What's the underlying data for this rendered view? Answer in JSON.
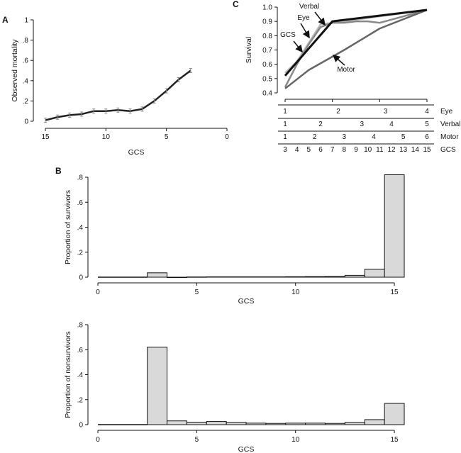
{
  "chart_data": [
    {
      "panel": "A",
      "type": "line",
      "xlabel": "GCS",
      "ylabel": "Observed mortality",
      "xlim": [
        15,
        0
      ],
      "ylim": [
        0,
        1
      ],
      "x_ticks": [
        15,
        10,
        5,
        0
      ],
      "y_ticks": [
        0,
        0.2,
        0.4,
        0.6,
        0.8,
        1
      ],
      "y_tick_labels": [
        "0",
        ".2",
        ".4",
        ".6",
        ".8",
        "1"
      ],
      "x": [
        15,
        14,
        13,
        12,
        11,
        10,
        9,
        8,
        7,
        6,
        5,
        4,
        3
      ],
      "values": [
        0.01,
        0.04,
        0.06,
        0.07,
        0.1,
        0.1,
        0.11,
        0.1,
        0.12,
        0.2,
        0.3,
        0.41,
        0.5
      ]
    },
    {
      "panel": "C",
      "type": "line",
      "ylabel": "Survival",
      "ylim": [
        0.4,
        1.0
      ],
      "y_ticks": [
        0.4,
        0.5,
        0.6,
        0.7,
        0.8,
        0.9,
        1.0
      ],
      "y_tick_labels": [
        "0.4",
        "0.5",
        "0.6",
        "0.7",
        "0.8",
        "0.9",
        "1.0"
      ],
      "series": [
        {
          "name": "GCS",
          "color": "#111111",
          "x": [
            3,
            7,
            15
          ],
          "values": [
            0.52,
            0.9,
            0.98
          ]
        },
        {
          "name": "Eye",
          "color": "#bbbbbb",
          "x": [
            3,
            4,
            5,
            6,
            7,
            15
          ],
          "values": [
            0.54,
            0.62,
            0.75,
            0.88,
            0.89,
            0.98
          ]
        },
        {
          "name": "Verbal",
          "color": "#888888",
          "x": [
            3,
            4,
            5,
            6,
            7,
            8,
            9,
            10,
            11,
            15
          ],
          "values": [
            0.44,
            0.6,
            0.74,
            0.86,
            0.89,
            0.89,
            0.9,
            0.9,
            0.89,
            0.98
          ]
        },
        {
          "name": "Motor",
          "color": "#666666",
          "x": [
            3,
            5,
            8,
            11,
            15
          ],
          "values": [
            0.43,
            0.56,
            0.7,
            0.85,
            0.98
          ]
        }
      ],
      "scale_rows": [
        {
          "label": "Eye",
          "ticks": [
            "1",
            "2",
            "3",
            "4"
          ],
          "gcs_pos": [
            3,
            7.5,
            11.5,
            15
          ]
        },
        {
          "label": "Verbal",
          "ticks": [
            "1",
            "2",
            "3",
            "4",
            "5"
          ],
          "gcs_pos": [
            3,
            6,
            9.5,
            12,
            15
          ]
        },
        {
          "label": "Motor",
          "ticks": [
            "1",
            "2",
            "3",
            "4",
            "5",
            "6"
          ],
          "gcs_pos": [
            3,
            5.5,
            8,
            10.5,
            13,
            15
          ]
        },
        {
          "label": "GCS",
          "ticks": [
            "3",
            "4",
            "5",
            "6",
            "7",
            "8",
            "9",
            "10",
            "11",
            "12",
            "13",
            "14",
            "15"
          ],
          "gcs_pos": [
            3,
            4,
            5,
            6,
            7,
            8,
            9,
            10,
            11,
            12,
            13,
            14,
            15
          ]
        }
      ]
    },
    {
      "panel": "B",
      "type": "bar",
      "xlabel": "GCS",
      "ylabel": "Proportion of survivors",
      "xlim": [
        0,
        15.5
      ],
      "ylim": [
        0,
        0.8
      ],
      "x_ticks": [
        0,
        5,
        10,
        15
      ],
      "y_ticks": [
        0,
        0.2,
        0.4,
        0.6,
        0.8
      ],
      "y_tick_labels": [
        "0",
        ".2",
        ".4",
        ".6",
        ".8"
      ],
      "categories": [
        3,
        4,
        5,
        6,
        7,
        8,
        9,
        10,
        11,
        12,
        13,
        14,
        15
      ],
      "values": [
        0.035,
        0.0,
        0.002,
        0.003,
        0.003,
        0.003,
        0.003,
        0.004,
        0.005,
        0.006,
        0.015,
        0.063,
        0.82
      ]
    },
    {
      "panel": "B-bottom",
      "type": "bar",
      "xlabel": "GCS",
      "ylabel": "Proportion of nonsurvivors",
      "xlim": [
        0,
        15.5
      ],
      "ylim": [
        0,
        0.8
      ],
      "x_ticks": [
        0,
        5,
        10,
        15
      ],
      "y_ticks": [
        0,
        0.2,
        0.4,
        0.6,
        0.8
      ],
      "y_tick_labels": [
        "0",
        ".2",
        ".4",
        ".6",
        ".8"
      ],
      "categories": [
        3,
        4,
        5,
        6,
        7,
        8,
        9,
        10,
        11,
        12,
        13,
        14,
        15
      ],
      "values": [
        0.62,
        0.03,
        0.02,
        0.025,
        0.018,
        0.012,
        0.01,
        0.012,
        0.012,
        0.01,
        0.018,
        0.04,
        0.17
      ]
    }
  ],
  "labels": {
    "panel_a": "A",
    "panel_b": "B",
    "panel_c": "C"
  },
  "colors": {
    "bar_fill": "#d9d9d9",
    "line": "#222222"
  }
}
